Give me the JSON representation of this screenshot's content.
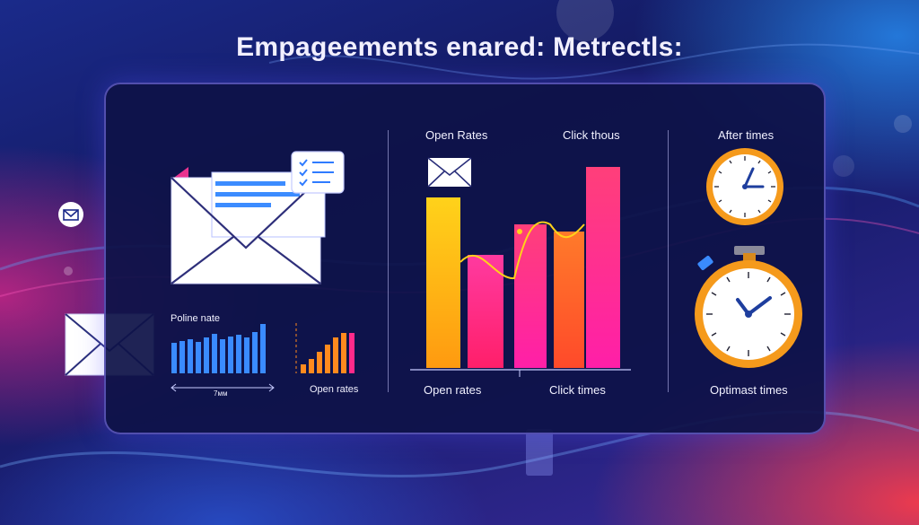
{
  "title": "Empageements enared: Metrectls:",
  "left": {
    "mini_chart1_label": "Poline nate",
    "mini_chart1_axis": "7мм",
    "mini_chart2_label": "Open rates"
  },
  "middle": {
    "top_left_label": "Open Rates",
    "top_right_label": "Click thous",
    "bottom_left_label": "Open rates",
    "bottom_right_label": "Click times"
  },
  "right": {
    "top_label": "After times",
    "bottom_label": "Optimast times"
  },
  "colors": {
    "background_dark": "#141a62",
    "panel": "#0e1248",
    "blue_bars": "#3a8bff",
    "orange": "#ff8a1e",
    "pink": "#ff2a8a",
    "yellow": "#ffcc10",
    "clock_rim": "#f59a1c"
  },
  "icons": [
    "envelope-icon",
    "checklist-card-icon",
    "clock-icon",
    "stopwatch-icon"
  ]
}
